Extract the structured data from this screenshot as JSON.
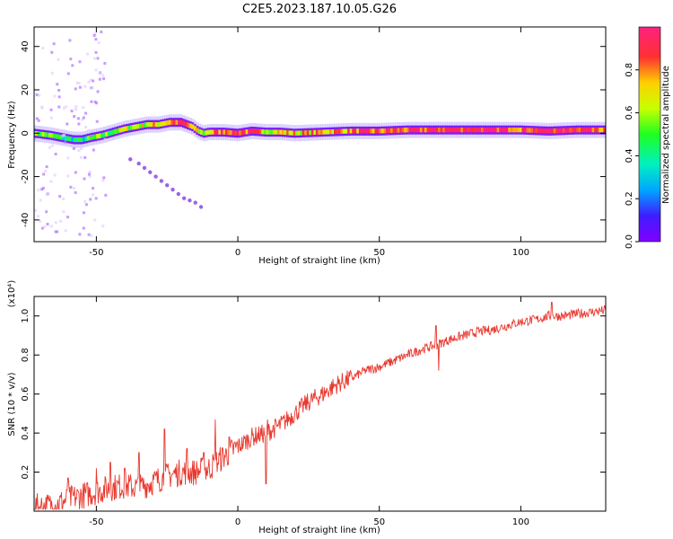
{
  "title": "C2E5.2023.187.10.05.G26",
  "chart_data": [
    {
      "type": "heatmap",
      "xlabel": "Height of straight line (km)",
      "ylabel": "Frequency (Hz)",
      "xlim": [
        -72,
        130
      ],
      "ylim": [
        -50,
        49
      ],
      "x_ticks": [
        -50,
        0,
        50,
        100
      ],
      "y_ticks": [
        -40,
        -20,
        0,
        20,
        40
      ],
      "colorbar": {
        "label": "Normalized spectral amplitude",
        "range": [
          0,
          1
        ],
        "ticks": [
          "0.0",
          "0.2",
          "0.4",
          "0.6",
          "0.8"
        ],
        "colormap": "rainbow (purple-blue-cyan-green-yellow-red-magenta)"
      },
      "ridge": {
        "x": [
          -72,
          -66,
          -62,
          -58,
          -55,
          -52,
          -48,
          -44,
          -40,
          -36,
          -32,
          -28,
          -24,
          -20,
          -16,
          -14,
          -12,
          -10,
          -8,
          -5,
          0,
          5,
          10,
          15,
          20,
          30,
          40,
          50,
          60,
          70,
          80,
          90,
          100,
          110,
          120,
          130
        ],
        "freq": [
          0,
          -1,
          -2,
          -3,
          -3,
          -2,
          -1,
          0.5,
          2,
          3,
          4,
          4,
          5,
          5,
          3,
          1,
          0,
          0.5,
          0.5,
          0.5,
          0,
          1,
          0.5,
          0.5,
          0,
          0.5,
          1,
          1,
          1.5,
          1.5,
          1.5,
          1.5,
          1.5,
          1,
          1.5,
          1.5
        ],
        "amplitude": [
          0.6,
          0.5,
          0.4,
          0.4,
          0.35,
          0.45,
          0.5,
          0.55,
          0.6,
          0.62,
          0.65,
          0.7,
          0.8,
          0.9,
          0.7,
          0.6,
          0.55,
          0.7,
          0.8,
          0.9,
          0.95,
          0.8,
          0.7,
          0.7,
          0.7,
          0.75,
          0.8,
          0.82,
          0.85,
          0.9,
          0.95,
          0.95,
          0.9,
          0.95,
          0.95,
          0.9
        ]
      },
      "scatter_points": {
        "x": [
          -38,
          -35,
          -33,
          -31,
          -29,
          -27,
          -25,
          -23,
          -21,
          -19,
          -17,
          -15,
          -13
        ],
        "freq": [
          -12,
          -14,
          -16,
          -18,
          -20,
          -22,
          -24,
          -26,
          -28,
          -30,
          -31,
          -32,
          -34
        ]
      }
    },
    {
      "type": "line",
      "xlabel": "Height of straight line (km)",
      "ylabel": "SNR (10 * v/v)",
      "y_multiplier": "(x10⁴)",
      "xlim": [
        -72,
        130
      ],
      "ylim": [
        0,
        1.1
      ],
      "x_ticks": [
        -50,
        0,
        50,
        100
      ],
      "y_ticks": [
        "0.2",
        "0.4",
        "0.6",
        "0.8",
        "1.0"
      ],
      "y_tick_values": [
        0.2,
        0.4,
        0.6,
        0.8,
        1.0
      ],
      "color": "#e8382e",
      "series": [
        {
          "x": [
            -72,
            -65,
            -60,
            -55,
            -50,
            -45,
            -40,
            -35,
            -30,
            -25,
            -20,
            -15,
            -10,
            -5,
            0,
            5,
            10,
            15,
            20,
            25,
            30,
            35,
            40,
            45,
            50,
            55,
            60,
            65,
            70,
            75,
            80,
            85,
            90,
            95,
            100,
            105,
            110,
            115,
            120,
            125,
            130
          ],
          "values": [
            0.02,
            0.03,
            0.06,
            0.08,
            0.1,
            0.12,
            0.13,
            0.12,
            0.15,
            0.18,
            0.2,
            0.2,
            0.22,
            0.28,
            0.33,
            0.38,
            0.4,
            0.44,
            0.5,
            0.56,
            0.6,
            0.65,
            0.68,
            0.72,
            0.74,
            0.77,
            0.8,
            0.83,
            0.85,
            0.88,
            0.9,
            0.92,
            0.93,
            0.95,
            0.97,
            0.98,
            1.0,
            1.0,
            1.01,
            1.02,
            1.03
          ]
        }
      ],
      "spikes": [
        {
          "x": -60,
          "value": 0.17
        },
        {
          "x": -50,
          "value": 0.22
        },
        {
          "x": -45,
          "value": 0.25
        },
        {
          "x": -40,
          "value": 0.22
        },
        {
          "x": -35,
          "value": 0.3
        },
        {
          "x": -26,
          "value": 0.42
        },
        {
          "x": -18,
          "value": 0.32
        },
        {
          "x": -12,
          "value": 0.3
        },
        {
          "x": -8,
          "value": 0.47
        },
        {
          "x": -3,
          "value": 0.38
        },
        {
          "x": 10,
          "value": 0.14
        },
        {
          "x": 10.5,
          "value": 0.47
        },
        {
          "x": 70,
          "value": 0.95
        },
        {
          "x": 71,
          "value": 0.72
        },
        {
          "x": 111,
          "value": 1.07
        }
      ]
    }
  ]
}
